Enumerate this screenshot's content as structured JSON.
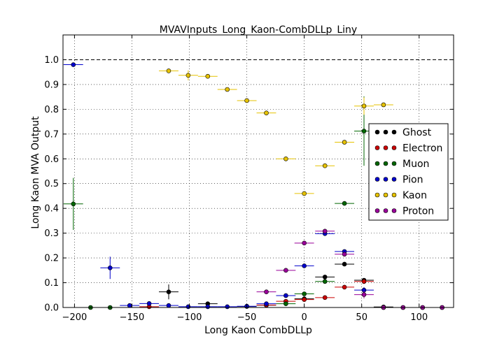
{
  "chart_data": {
    "type": "scatter",
    "title": "MVAVInputs_Long_Kaon-CombDLLp_Liny",
    "xlabel": "Long Kaon CombDLLp",
    "ylabel": "Long Kaon MVA Output",
    "xlim": [
      -210,
      130
    ],
    "ylim": [
      0,
      1.1
    ],
    "x_ticks": [
      {
        "value": -200,
        "label": "−200"
      },
      {
        "value": -150,
        "label": "−150"
      },
      {
        "value": -100,
        "label": "−100"
      },
      {
        "value": -50,
        "label": "−50"
      },
      {
        "value": 0,
        "label": "0"
      },
      {
        "value": 50,
        "label": "50"
      },
      {
        "value": 100,
        "label": "100"
      }
    ],
    "y_ticks": [
      {
        "value": 0.0,
        "label": "0.0"
      },
      {
        "value": 0.1,
        "label": "0.1"
      },
      {
        "value": 0.2,
        "label": "0.2"
      },
      {
        "value": 0.3,
        "label": "0.3"
      },
      {
        "value": 0.4,
        "label": "0.4"
      },
      {
        "value": 0.5,
        "label": "0.5"
      },
      {
        "value": 0.6,
        "label": "0.6"
      },
      {
        "value": 0.7,
        "label": "0.7"
      },
      {
        "value": 0.8,
        "label": "0.8"
      },
      {
        "value": 0.9,
        "label": "0.9"
      },
      {
        "value": 1.0,
        "label": "1.0"
      }
    ],
    "grid": true,
    "reference_line": 1.0,
    "legend_position": "right",
    "x_half_width": 8.5,
    "series": [
      {
        "name": "Ghost",
        "color": "#000000",
        "points": [
          {
            "x": -118,
            "y": 0.063,
            "yerr": 0.03
          },
          {
            "x": -84,
            "y": 0.015,
            "yerr": 0.008
          },
          {
            "x": -50,
            "y": 0.004,
            "yerr": 0.003
          },
          {
            "x": -33,
            "y": 0.009,
            "yerr": 0.004
          },
          {
            "x": 0,
            "y": 0.035,
            "yerr": 0.008
          },
          {
            "x": 18,
            "y": 0.123,
            "yerr": 0.008
          },
          {
            "x": 35,
            "y": 0.175,
            "yerr": 0.008
          },
          {
            "x": 52,
            "y": 0.11,
            "yerr": 0.008
          },
          {
            "x": 69,
            "y": 0.002,
            "yerr": 0.002
          },
          {
            "x": 86,
            "y": 0.0,
            "yerr": 0.0
          },
          {
            "x": 103,
            "y": 0.0,
            "yerr": 0.0
          },
          {
            "x": 120,
            "y": 0.0,
            "yerr": 0.0
          }
        ]
      },
      {
        "name": "Electron",
        "color": "#cc0000",
        "points": [
          {
            "x": -135,
            "y": 0.003,
            "yerr": 0.002
          },
          {
            "x": -33,
            "y": 0.01,
            "yerr": 0.004
          },
          {
            "x": -16,
            "y": 0.025,
            "yerr": 0.005
          },
          {
            "x": 0,
            "y": 0.032,
            "yerr": 0.005
          },
          {
            "x": 18,
            "y": 0.04,
            "yerr": 0.005
          },
          {
            "x": 35,
            "y": 0.082,
            "yerr": 0.006
          },
          {
            "x": 52,
            "y": 0.105,
            "yerr": 0.01
          },
          {
            "x": 69,
            "y": 0.0,
            "yerr": 0.0
          }
        ]
      },
      {
        "name": "Muon",
        "color": "#006600",
        "points": [
          {
            "x": -201,
            "y": 0.418,
            "yerr": 0.105
          },
          {
            "x": -186,
            "y": 0.0,
            "yerr": 0.0
          },
          {
            "x": -169,
            "y": 0.0,
            "yerr": 0.0
          },
          {
            "x": -16,
            "y": 0.015,
            "yerr": 0.005
          },
          {
            "x": 0,
            "y": 0.055,
            "yerr": 0.008
          },
          {
            "x": 18,
            "y": 0.105,
            "yerr": 0.008
          },
          {
            "x": 35,
            "y": 0.42,
            "yerr": 0.008
          },
          {
            "x": 52,
            "y": 0.712,
            "yerr": 0.14
          }
        ]
      },
      {
        "name": "Pion",
        "color": "#0000cc",
        "points": [
          {
            "x": -201,
            "y": 0.98,
            "yerr": 0.004
          },
          {
            "x": -169,
            "y": 0.16,
            "yerr": 0.045
          },
          {
            "x": -152,
            "y": 0.008,
            "yerr": 0.004
          },
          {
            "x": -135,
            "y": 0.016,
            "yerr": 0.004
          },
          {
            "x": -118,
            "y": 0.008,
            "yerr": 0.004
          },
          {
            "x": -101,
            "y": 0.003,
            "yerr": 0.002
          },
          {
            "x": -84,
            "y": 0.003,
            "yerr": 0.002
          },
          {
            "x": -67,
            "y": 0.003,
            "yerr": 0.002
          },
          {
            "x": -50,
            "y": 0.005,
            "yerr": 0.002
          },
          {
            "x": -33,
            "y": 0.015,
            "yerr": 0.004
          },
          {
            "x": -16,
            "y": 0.048,
            "yerr": 0.005
          },
          {
            "x": 0,
            "y": 0.168,
            "yerr": 0.006
          },
          {
            "x": 18,
            "y": 0.298,
            "yerr": 0.006
          },
          {
            "x": 35,
            "y": 0.226,
            "yerr": 0.008
          },
          {
            "x": 52,
            "y": 0.07,
            "yerr": 0.012
          }
        ]
      },
      {
        "name": "Kaon",
        "color": "#e6c200",
        "points": [
          {
            "x": -118,
            "y": 0.955,
            "yerr": 0.005
          },
          {
            "x": -101,
            "y": 0.937,
            "yerr": 0.02
          },
          {
            "x": -84,
            "y": 0.933,
            "yerr": 0.005
          },
          {
            "x": -67,
            "y": 0.88,
            "yerr": 0.005
          },
          {
            "x": -50,
            "y": 0.835,
            "yerr": 0.005
          },
          {
            "x": -33,
            "y": 0.785,
            "yerr": 0.005
          },
          {
            "x": -16,
            "y": 0.6,
            "yerr": 0.005
          },
          {
            "x": 0,
            "y": 0.46,
            "yerr": 0.005
          },
          {
            "x": 18,
            "y": 0.572,
            "yerr": 0.005
          },
          {
            "x": 35,
            "y": 0.667,
            "yerr": 0.005
          },
          {
            "x": 52,
            "y": 0.813,
            "yerr": 0.035
          },
          {
            "x": 69,
            "y": 0.818,
            "yerr": 0.008
          }
        ]
      },
      {
        "name": "Proton",
        "color": "#990099",
        "points": [
          {
            "x": -33,
            "y": 0.063,
            "yerr": 0.005
          },
          {
            "x": -16,
            "y": 0.15,
            "yerr": 0.005
          },
          {
            "x": 0,
            "y": 0.26,
            "yerr": 0.005
          },
          {
            "x": 18,
            "y": 0.308,
            "yerr": 0.006
          },
          {
            "x": 35,
            "y": 0.215,
            "yerr": 0.008
          },
          {
            "x": 52,
            "y": 0.052,
            "yerr": 0.015
          },
          {
            "x": 69,
            "y": 0.0,
            "yerr": 0.0
          },
          {
            "x": 86,
            "y": 0.0,
            "yerr": 0.0
          },
          {
            "x": 103,
            "y": 0.0,
            "yerr": 0.0
          },
          {
            "x": 120,
            "y": 0.0,
            "yerr": 0.0
          }
        ]
      }
    ]
  }
}
